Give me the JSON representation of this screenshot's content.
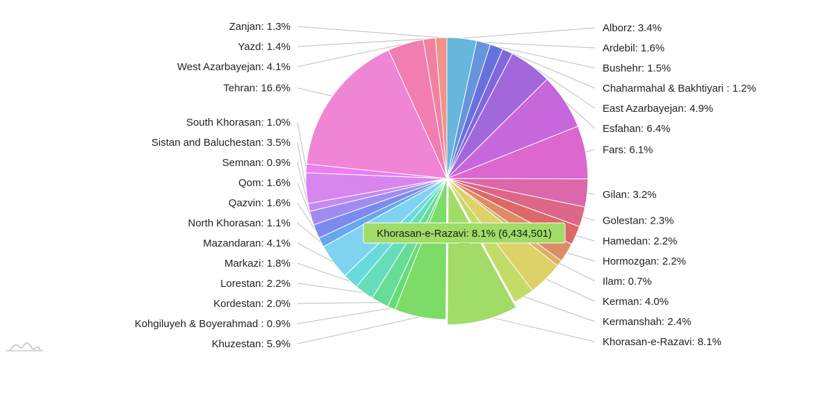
{
  "chart_data": {
    "type": "pie",
    "total_shown_in_tooltip": null,
    "slices": [
      {
        "name": "Alborz",
        "label": "Alborz: 3.4%",
        "value": 3.4,
        "color": "#67b7dc"
      },
      {
        "name": "Ardebil",
        "label": "Ardebil: 1.6%",
        "value": 1.6,
        "color": "#6794dc"
      },
      {
        "name": "Bushehr",
        "label": "Bushehr: 1.5%",
        "value": 1.5,
        "color": "#6771dc"
      },
      {
        "name": "Chaharmahal & Bakhtiyari",
        "label": "Chaharmahal & Bakhtiyari : 1.2%",
        "value": 1.2,
        "color": "#8067dc"
      },
      {
        "name": "East Azarbayejan",
        "label": "East Azarbayejan: 4.9%",
        "value": 4.9,
        "color": "#a367dc"
      },
      {
        "name": "Esfahan",
        "label": "Esfahan: 6.4%",
        "value": 6.4,
        "color": "#c767dc"
      },
      {
        "name": "Fars",
        "label": "Fars: 6.1%",
        "value": 6.1,
        "color": "#dc67ce"
      },
      {
        "name": "Gilan",
        "label": "Gilan: 3.2%",
        "value": 3.2,
        "color": "#dc67ab"
      },
      {
        "name": "Golestan",
        "label": "Golestan: 2.3%",
        "value": 2.3,
        "color": "#dc6788"
      },
      {
        "name": "Hamedan",
        "label": "Hamedan: 2.2%",
        "value": 2.2,
        "color": "#dc6967"
      },
      {
        "name": "Hormozgan",
        "label": "Hormozgan: 2.2%",
        "value": 2.2,
        "color": "#dc8c67"
      },
      {
        "name": "Ilam",
        "label": "Ilam: 0.7%",
        "value": 0.7,
        "color": "#dcaf67"
      },
      {
        "name": "Kerman",
        "label": "Kerman: 4.0%",
        "value": 4.0,
        "color": "#dcd267"
      },
      {
        "name": "Kermanshah",
        "label": "Kermanshah: 2.4%",
        "value": 2.4,
        "color": "#c3dc67"
      },
      {
        "name": "Khorasan-e-Razavi",
        "label": "Khorasan-e-Razavi: 8.1%",
        "value": 8.1,
        "color": "#a0dc67",
        "highlighted": true
      },
      {
        "name": "Khuzestan",
        "label": "Khuzestan: 5.9%",
        "value": 5.9,
        "color": "#7ddc67"
      },
      {
        "name": "Kohgiluyeh & Boyerahmad",
        "label": "Kohgiluyeh & Boyerahmad : 0.9%",
        "value": 0.9,
        "color": "#67dc75"
      },
      {
        "name": "Kordestan",
        "label": "Kordestan: 2.0%",
        "value": 2.0,
        "color": "#67dc98"
      },
      {
        "name": "Lorestan",
        "label": "Lorestan: 2.2%",
        "value": 2.2,
        "color": "#67dcbb"
      },
      {
        "name": "Markazi",
        "label": "Markazi: 1.8%",
        "value": 1.8,
        "color": "#67dadc"
      },
      {
        "name": "Mazandaran",
        "label": "Mazandaran: 4.1%",
        "value": 4.1,
        "color": "#80d3f0"
      },
      {
        "name": "North Khorasan",
        "label": "North Khorasan: 1.1%",
        "value": 1.1,
        "color": "#67a7ee"
      },
      {
        "name": "Qazvin",
        "label": "Qazvin: 1.6%",
        "value": 1.6,
        "color": "#7a8af0"
      },
      {
        "name": "Qom",
        "label": "Qom: 1.6%",
        "value": 1.6,
        "color": "#a08cf0"
      },
      {
        "name": "Semnan",
        "label": "Semnan: 0.9%",
        "value": 0.9,
        "color": "#c58af2"
      },
      {
        "name": "Sistan and Baluchestan",
        "label": "Sistan and Baluchestan: 3.5%",
        "value": 3.5,
        "color": "#d885f0"
      },
      {
        "name": "South Khorasan",
        "label": "South Khorasan: 1.0%",
        "value": 1.0,
        "color": "#eb7ef0"
      },
      {
        "name": "Tehran",
        "label": "Tehran: 16.6%",
        "value": 16.6,
        "color": "#f085d6"
      },
      {
        "name": "West Azarbayejan",
        "label": "West Azarbayejan: 4.1%",
        "value": 4.1,
        "color": "#f27db0"
      },
      {
        "name": "Yazd",
        "label": "Yazd: 1.4%",
        "value": 1.4,
        "color": "#f280a0"
      },
      {
        "name": "Zanjan",
        "label": "Zanjan: 1.3%",
        "value": 1.3,
        "color": "#f2938a"
      }
    ],
    "tooltip": {
      "text": "Khorasan-e-Razavi: 8.1% (6,434,501)",
      "color": "#a0dc67"
    }
  }
}
